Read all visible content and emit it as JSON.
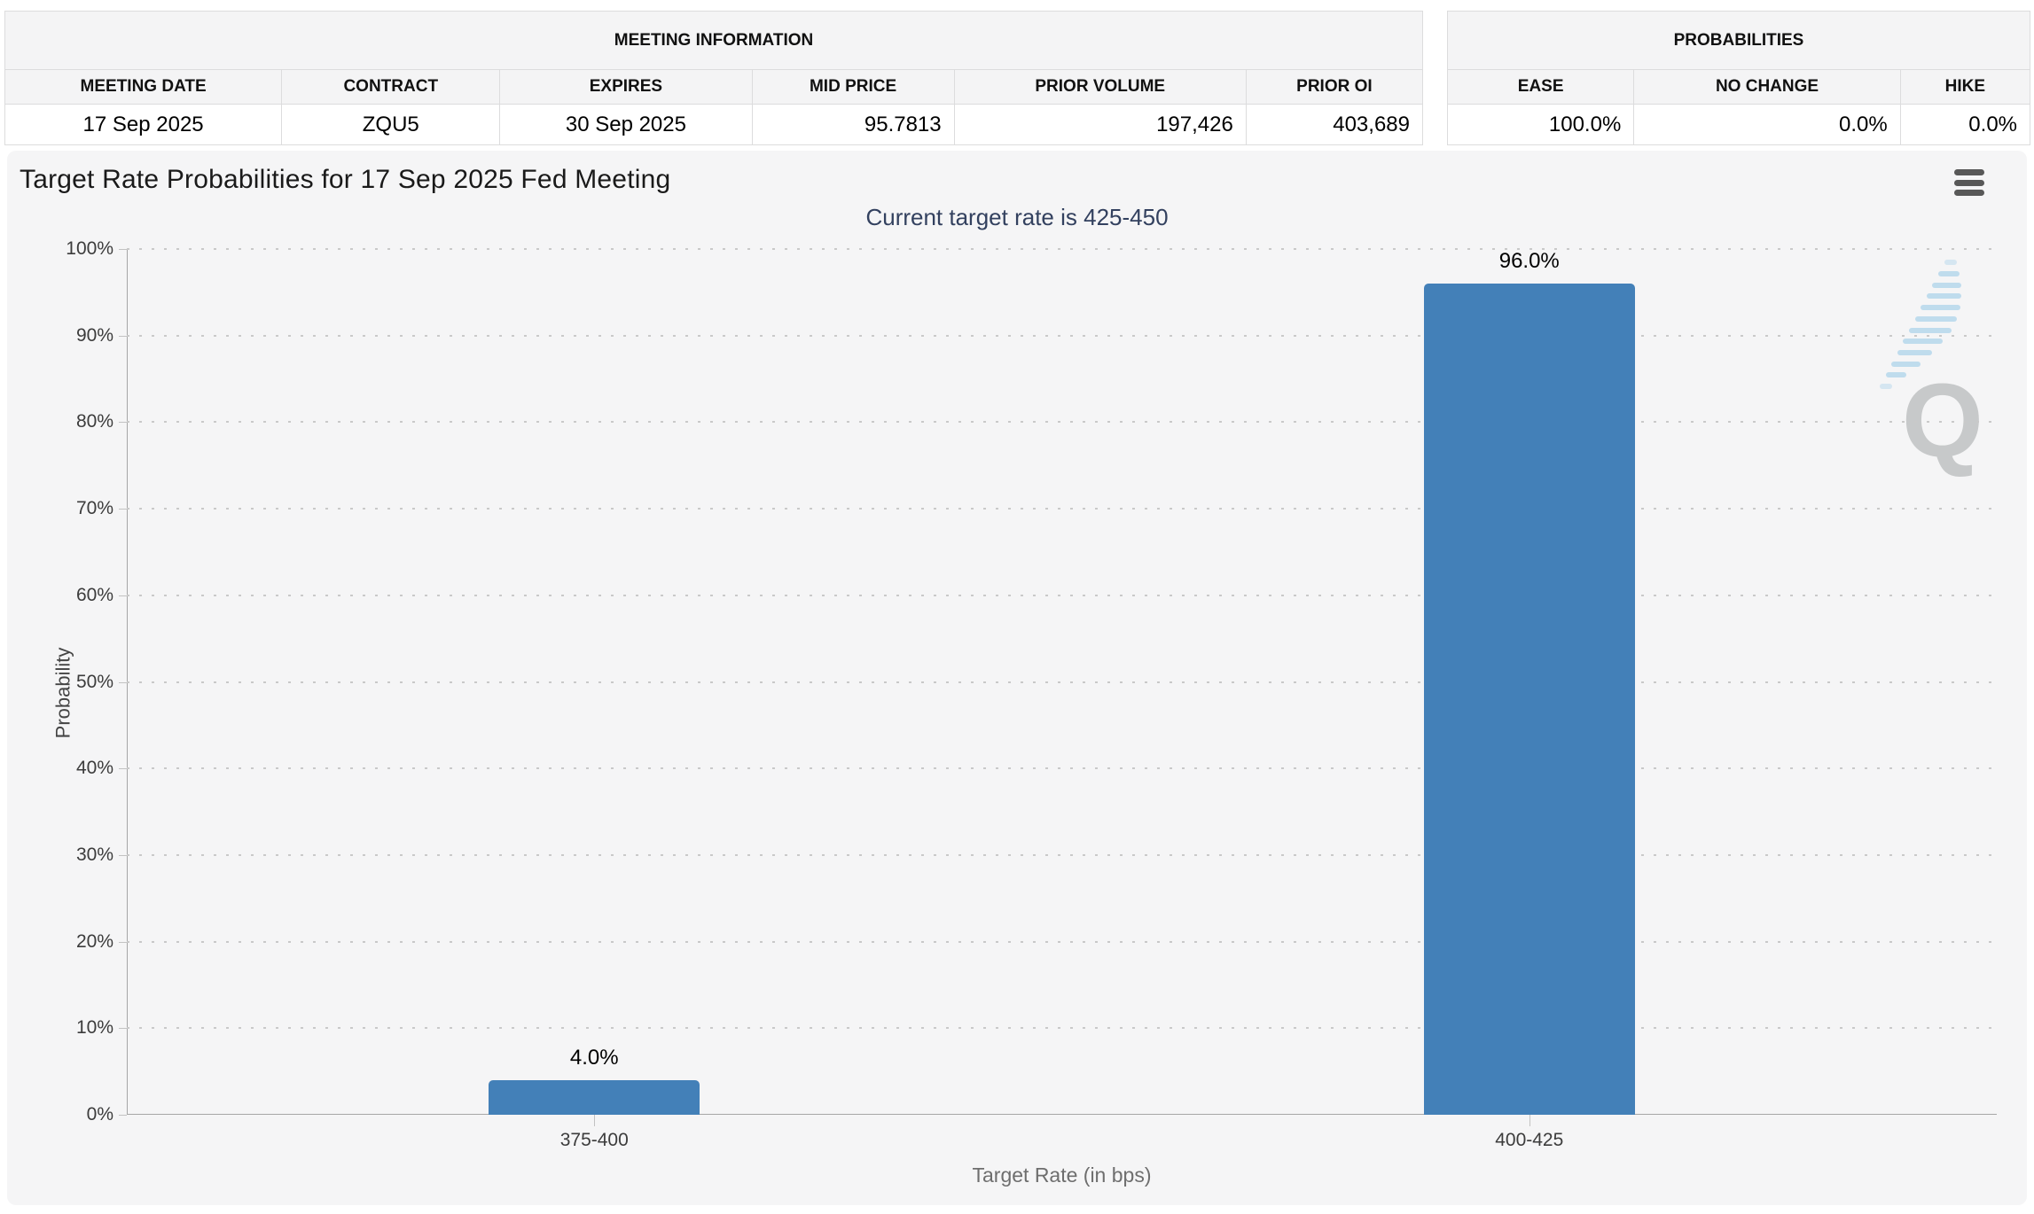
{
  "meeting_information": {
    "title": "MEETING INFORMATION",
    "columns": [
      "MEETING DATE",
      "CONTRACT",
      "EXPIRES",
      "MID PRICE",
      "PRIOR VOLUME",
      "PRIOR OI"
    ],
    "row": [
      "17 Sep 2025",
      "ZQU5",
      "30 Sep 2025",
      "95.7813",
      "197,426",
      "403,689"
    ]
  },
  "probabilities": {
    "title": "PROBABILITIES",
    "columns": [
      "EASE",
      "NO CHANGE",
      "HIKE"
    ],
    "row": [
      "100.0%",
      "0.0%",
      "0.0%"
    ]
  },
  "chart": {
    "menu_icon": "hamburger-menu-icon",
    "watermark_letter": "Q"
  },
  "chart_data": {
    "type": "bar",
    "title": "Target Rate Probabilities for 17 Sep 2025 Fed Meeting",
    "subtitle": "Current target rate is 425-450",
    "categories": [
      "375-400",
      "400-425"
    ],
    "values": [
      4.0,
      96.0
    ],
    "value_labels": [
      "4.0%",
      "96.0%"
    ],
    "xlabel": "Target Rate (in bps)",
    "ylabel": "Probability",
    "ylim": [
      0,
      100
    ],
    "ytick_step": 10,
    "ytick_suffix": "%",
    "grid": "horizontal-dotted",
    "legend": "none",
    "bar_color": "#4380b8"
  },
  "colors": {
    "panel_background": "#f5f5f6",
    "bar": "#4380b8",
    "subtitle_text": "#33415f",
    "watermark_gray": "#c7c9ca",
    "watermark_blue": "#b9d9ec"
  }
}
